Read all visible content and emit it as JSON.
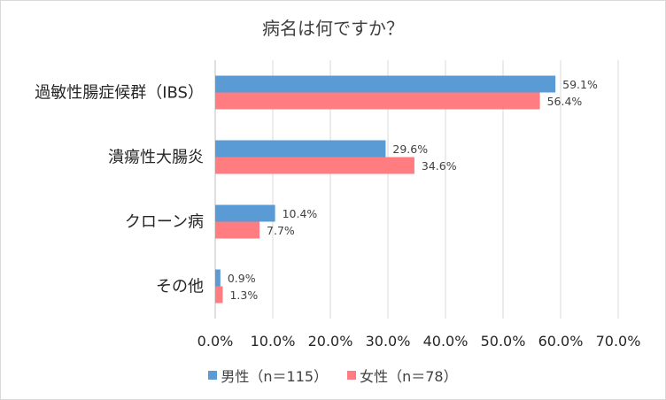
{
  "chart_data": {
    "type": "bar",
    "orientation": "horizontal",
    "title": "病名は何ですか？",
    "categories": [
      "過敏性腸症候群（IBS）",
      "潰瘍性大腸炎",
      "クローン病",
      "その他"
    ],
    "series": [
      {
        "name": "男性（n＝115）",
        "color": "#5b9bd5",
        "values": [
          59.1,
          29.6,
          10.4,
          0.9
        ],
        "labels": [
          "59.1%",
          "29.6%",
          "10.4%",
          "0.9%"
        ]
      },
      {
        "name": "女性（n＝78）",
        "color": "#ff7c80",
        "values": [
          56.4,
          34.6,
          7.7,
          1.3
        ],
        "labels": [
          "56.4%",
          "34.6%",
          "7.7%",
          "1.3%"
        ]
      }
    ],
    "xticks": [
      "0.0%",
      "10.0%",
      "20.0%",
      "30.0%",
      "40.0%",
      "50.0%",
      "60.0%",
      "70.0%"
    ],
    "xlim": [
      0,
      70
    ],
    "grid": true,
    "legend_position": "bottom"
  }
}
